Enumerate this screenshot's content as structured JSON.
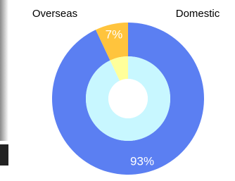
{
  "chart_data": {
    "type": "pie",
    "categories": [
      "Domestic",
      "Overseas"
    ],
    "values": [
      93,
      7
    ],
    "value_labels": [
      "93%",
      "7%"
    ],
    "colors": [
      "#5b7ff2",
      "#ffc43d"
    ],
    "inner_colors": [
      "#c8f7ff",
      "#ffff9a"
    ]
  }
}
